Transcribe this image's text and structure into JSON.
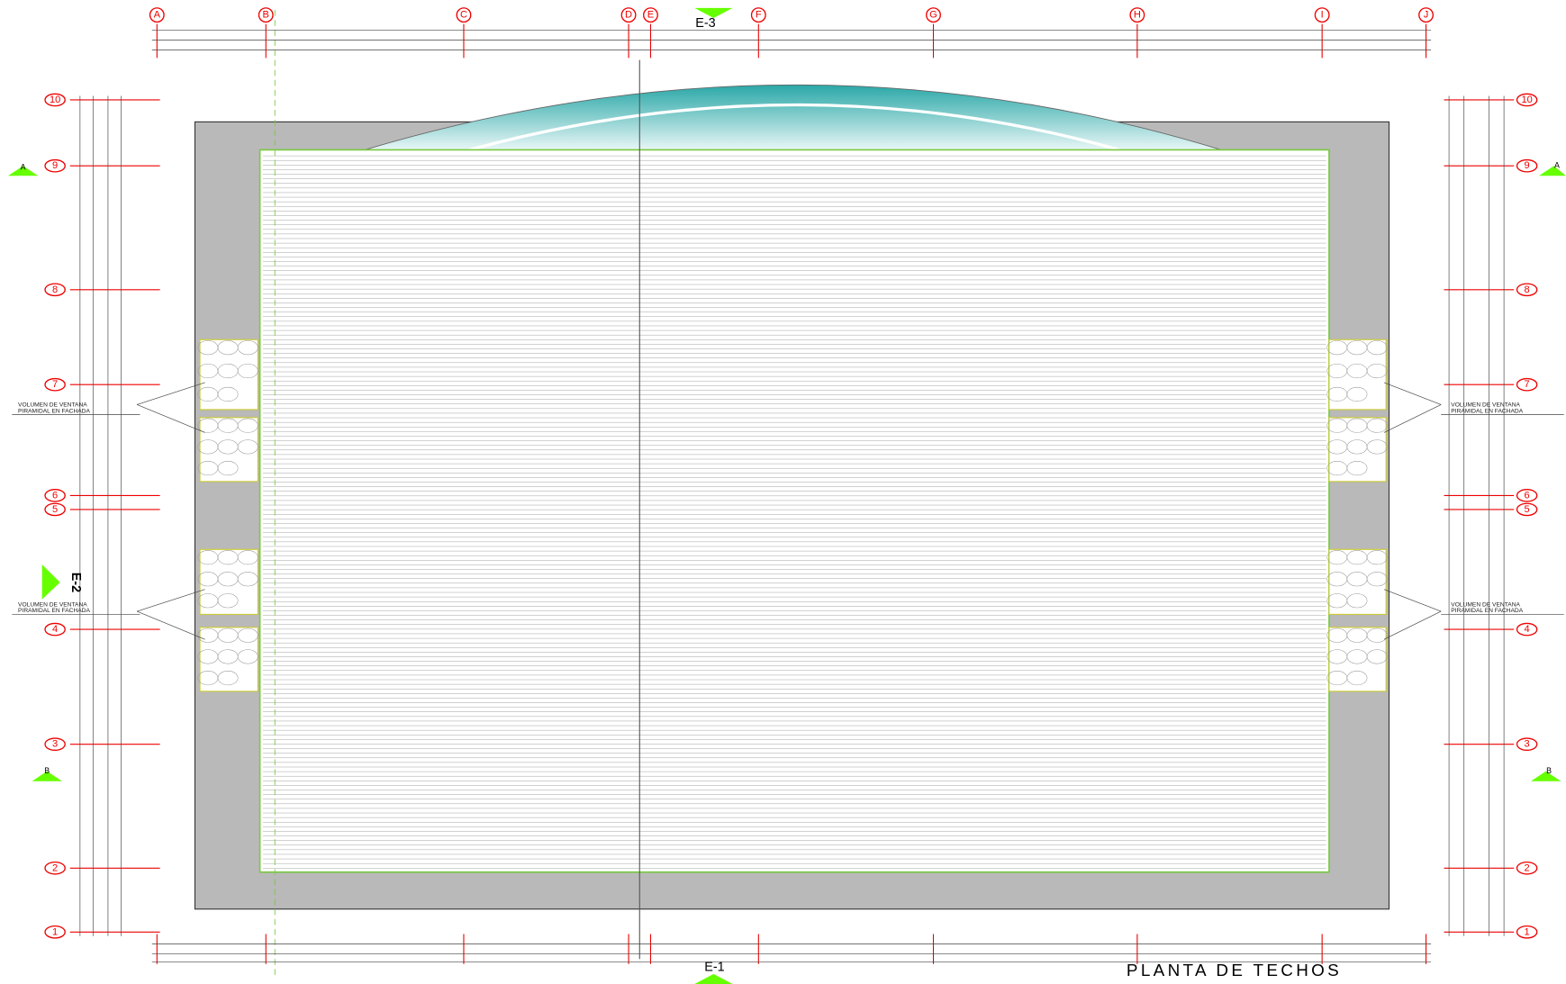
{
  "plan": {
    "title": "PLANTA DE TECHOS",
    "sections": {
      "top": "E-3",
      "bottom": "E-1",
      "left": "E-2",
      "cut_a": "A",
      "cut_b": "B"
    },
    "columns": [
      "A",
      "B",
      "C",
      "D",
      "E",
      "F",
      "G",
      "H",
      "I",
      "J"
    ],
    "rows": [
      "10",
      "9",
      "8",
      "7",
      "6",
      "5",
      "4",
      "3",
      "2",
      "1"
    ],
    "notes": [
      {
        "line1": "VOLUMEN DE VENTANA",
        "line2": "PIRAMIDAL EN FACHADA"
      },
      {
        "line1": "VOLUMEN DE VENTANA",
        "line2": "PIRAMIDAL EN FACHADA"
      },
      {
        "line1": "VOLUMEN DE VENTANA",
        "line2": "PIRAMIDAL EN FACHADA"
      },
      {
        "line1": "VOLUMEN DE VENTANA",
        "line2": "PIRAMIDAL EN FACHADA"
      }
    ]
  }
}
